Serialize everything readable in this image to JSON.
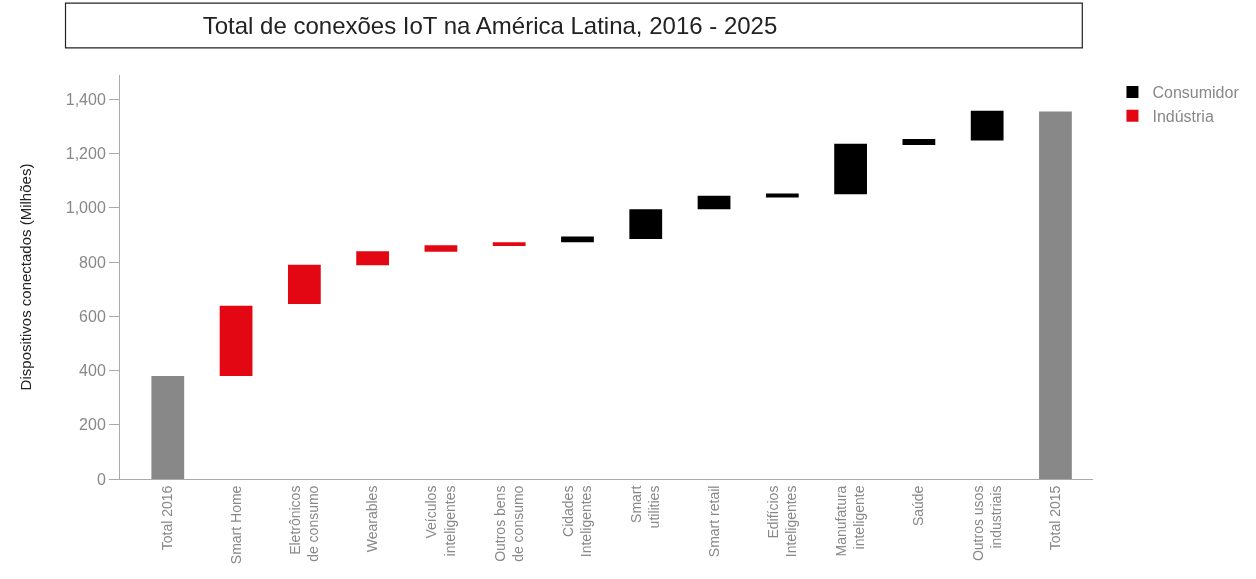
{
  "chart_data": {
    "type": "bar",
    "title": "Total de conexões IoT na América Latina, 2016 - 2025",
    "ylabel": "Dispositivos conectados (Milhões)",
    "categories": [
      "Total 2016",
      "Smart Home",
      "Eletrônicos de consumo",
      "Wearables",
      "Veículos inteligentes",
      "Outros bens de consumo",
      "Cidades Inteligentes",
      "Smart utilities",
      "Smart retail",
      "Edifícios Inteligentes",
      "Manufatura inteligente",
      "Saúde",
      "Outros usos industriais",
      "Total 2015"
    ],
    "series": [
      {
        "color": "#888888",
        "values": [
          380,
          null,
          null,
          null,
          null,
          null,
          null,
          null,
          null,
          null,
          null,
          null,
          null,
          1355
        ],
        "base": [
          0,
          null,
          null,
          null,
          null,
          null,
          null,
          null,
          null,
          null,
          null,
          null,
          null,
          0
        ]
      },
      {
        "name": "Consumidor",
        "color": "#000000",
        "values": [
          null,
          null,
          null,
          null,
          null,
          null,
          21,
          110,
          50,
          15,
          186,
          22,
          110,
          null
        ],
        "base": [
          null,
          null,
          null,
          null,
          null,
          null,
          873,
          885,
          995,
          1038,
          1050,
          1232,
          1248,
          null
        ]
      },
      {
        "name": "Indústria",
        "color": "#e30613",
        "values": [
          null,
          259,
          145,
          52,
          24,
          14,
          null,
          null,
          null,
          null,
          null,
          null,
          null,
          null
        ],
        "base": [
          null,
          380,
          645,
          788,
          838,
          859,
          null,
          null,
          null,
          null,
          null,
          null,
          null,
          null
        ]
      }
    ],
    "ylim": [
      0,
      1490
    ],
    "yticks": [
      0,
      200,
      400,
      600,
      800,
      {
        "value": 1000,
        "label": "1,000"
      },
      {
        "value": 1200,
        "label": "1,200"
      },
      {
        "value": 1400,
        "label": "1,400"
      }
    ],
    "legend": "top right"
  }
}
